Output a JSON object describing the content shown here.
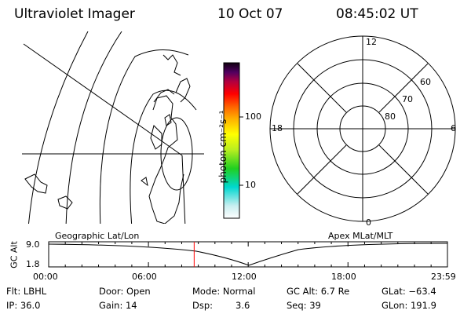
{
  "header": {
    "title": "Ultraviolet Imager",
    "date": "10 Oct 07",
    "time": "08:45:02 UT"
  },
  "colorbar": {
    "unit": "photon cm⁻²s⁻¹",
    "tick_high": "100",
    "tick_low": "10"
  },
  "polar_plot": {
    "mlt_labels": {
      "top": "12",
      "left": "18",
      "right": "6",
      "bottom": "0"
    },
    "lat_labels": [
      "60",
      "70",
      "80"
    ]
  },
  "timeline": {
    "ylabel": "GC Alt",
    "ytick_top": "9.0",
    "ytick_bottom": "1.8",
    "left_caption": "Geographic Lat/Lon",
    "right_caption": "Apex MLat/MLT",
    "xticks": [
      "00:00",
      "06:00",
      "12:00",
      "18:00",
      "23:59"
    ],
    "marker_time": "08:45",
    "marker_color": "#ff0000"
  },
  "info": {
    "filter": "Flt: LBHL",
    "ip": "IP: 36.0",
    "door": "Door: Open",
    "gain": "Gain: 14",
    "mode": "Mode: Normal",
    "dsp_label": "Dsp:",
    "dsp_value": "3.6",
    "gc_alt": "GC Alt: 6.7 Re",
    "seq": "Seq: 39",
    "glat": "GLat: −63.4",
    "glon": "GLon: 191.9"
  }
}
